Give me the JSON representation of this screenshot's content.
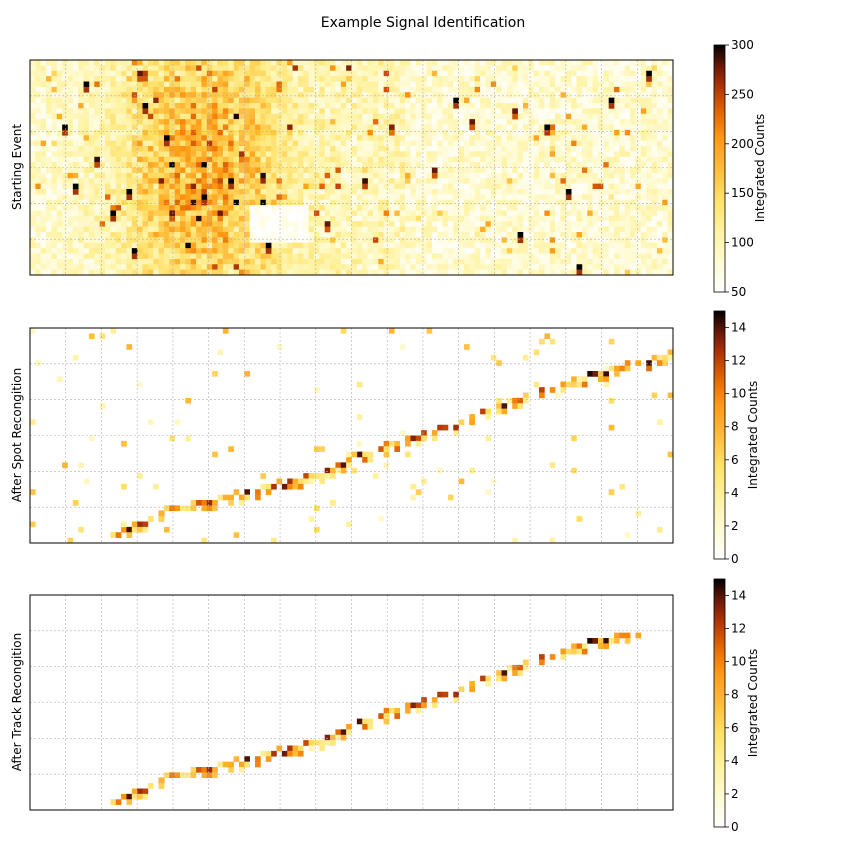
{
  "figure": {
    "title": "Example Signal Identification"
  },
  "chart_data": [
    {
      "type": "heatmap",
      "ylabel": "Starting Event",
      "colorbar": {
        "label": "Integrated Counts",
        "min": 50,
        "max": 300,
        "ticks": [
          50,
          100,
          150,
          200,
          250,
          300
        ]
      },
      "grid": true,
      "description_values": {
        "background_counts_range": [
          50,
          120
        ],
        "high_density_region_x": [
          0.18,
          0.32
        ],
        "hot_pixels": [
          [
            0.09,
            0.12,
            300
          ],
          [
            0.17,
            0.06,
            280
          ],
          [
            0.18,
            0.22,
            300
          ],
          [
            0.21,
            0.35,
            300
          ],
          [
            0.1,
            0.45,
            290
          ],
          [
            0.15,
            0.6,
            300
          ],
          [
            0.27,
            0.64,
            300
          ],
          [
            0.33,
            0.44,
            260
          ],
          [
            0.05,
            0.3,
            300
          ],
          [
            0.07,
            0.58,
            300
          ],
          [
            0.13,
            0.7,
            300
          ],
          [
            0.22,
            0.7,
            280
          ],
          [
            0.16,
            0.88,
            300
          ],
          [
            0.31,
            0.56,
            300
          ],
          [
            0.37,
            0.85,
            300
          ],
          [
            0.46,
            0.75,
            280
          ],
          [
            0.52,
            0.55,
            290
          ],
          [
            0.56,
            0.32,
            270
          ],
          [
            0.66,
            0.18,
            300
          ],
          [
            0.63,
            0.5,
            280
          ],
          [
            0.75,
            0.24,
            280
          ],
          [
            0.76,
            0.8,
            300
          ],
          [
            0.8,
            0.3,
            300
          ],
          [
            0.84,
            0.62,
            300
          ],
          [
            0.85,
            0.96,
            300
          ],
          [
            0.9,
            0.18,
            300
          ],
          [
            0.96,
            0.07,
            300
          ],
          [
            0.69,
            0.28,
            280
          ]
        ]
      }
    },
    {
      "type": "heatmap",
      "ylabel": "After Spot Recongition",
      "colorbar": {
        "label": "Integrated Counts",
        "min": 0,
        "max": 15,
        "ticks": [
          0,
          2,
          4,
          6,
          8,
          10,
          12,
          14
        ]
      },
      "grid": true,
      "track_path": [
        [
          0.13,
          0.97
        ],
        [
          0.2,
          0.86
        ],
        [
          0.33,
          0.77
        ],
        [
          0.45,
          0.68
        ],
        [
          0.55,
          0.55
        ],
        [
          0.66,
          0.45
        ],
        [
          0.77,
          0.32
        ],
        [
          0.88,
          0.22
        ],
        [
          1.0,
          0.11
        ]
      ],
      "noise_points": 110
    },
    {
      "type": "heatmap",
      "ylabel": "After Track Recongition",
      "colorbar": {
        "label": "Integrated Counts",
        "min": 0,
        "max": 15,
        "ticks": [
          0,
          2,
          4,
          6,
          8,
          10,
          12,
          14
        ]
      },
      "grid": true,
      "track_path": [
        [
          0.13,
          0.97
        ],
        [
          0.2,
          0.86
        ],
        [
          0.33,
          0.77
        ],
        [
          0.45,
          0.68
        ],
        [
          0.55,
          0.55
        ],
        [
          0.66,
          0.45
        ],
        [
          0.77,
          0.32
        ],
        [
          0.88,
          0.22
        ],
        [
          0.95,
          0.17
        ]
      ],
      "noise_points": 0
    }
  ]
}
